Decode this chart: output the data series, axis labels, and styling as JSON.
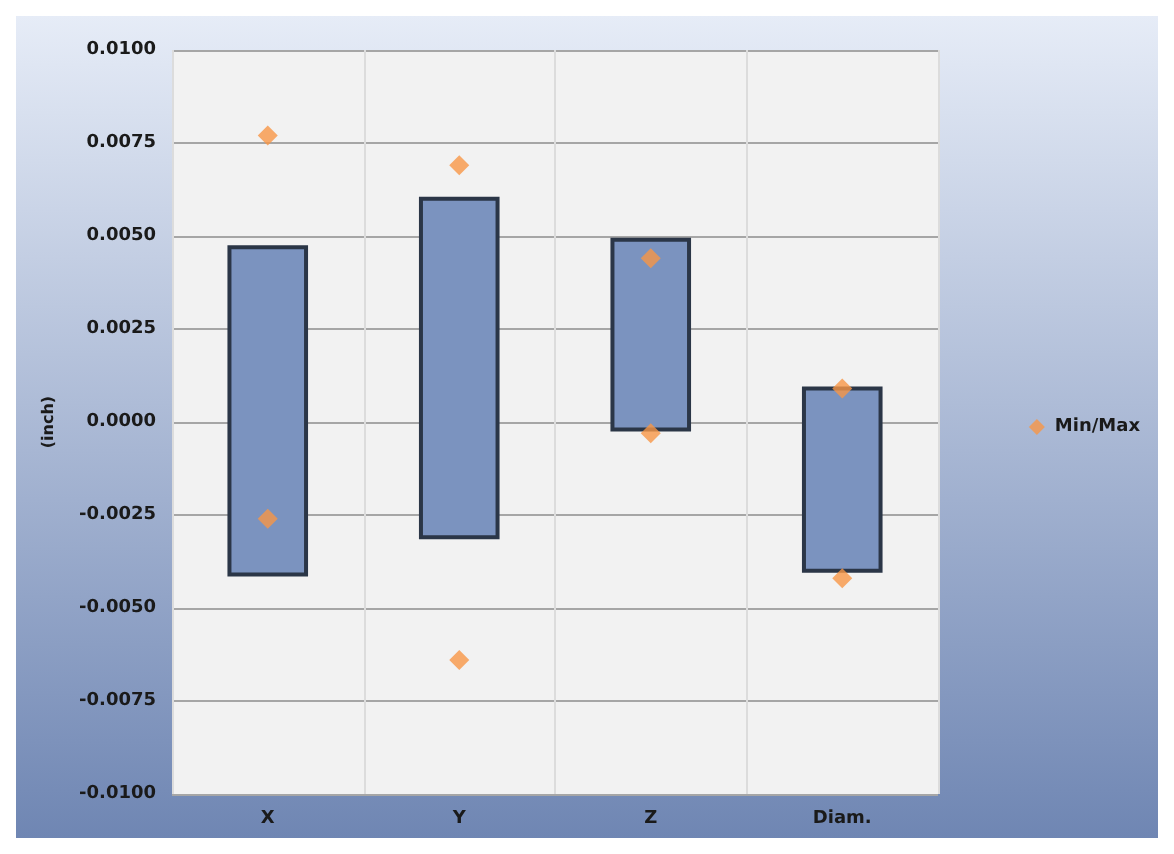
{
  "chart_data": {
    "type": "bar",
    "ylabel": "(inch)",
    "categories": [
      "X",
      "Y",
      "Z",
      "Diam."
    ],
    "series": [
      {
        "color": "#7b93bf",
        "base": [
          -0.0041,
          -0.0031,
          -0.0002,
          -0.004
        ],
        "values": [
          0.0088,
          0.0091,
          0.0051,
          0.0049
        ]
      },
      {
        "type": "scatter",
        "name": "Min/Max",
        "color": "#f79646",
        "marker": "diamond",
        "x": [
          "X",
          "X",
          "Y",
          "Y",
          "Z",
          "Z",
          "Diam.",
          "Diam."
        ],
        "values": [
          0.0077,
          -0.0026,
          0.0069,
          -0.0064,
          0.0044,
          -0.0003,
          0.0009,
          -0.0042
        ]
      }
    ],
    "ylim": [
      -0.01,
      0.01
    ],
    "yticks": [
      {
        "value": -0.01,
        "label": "-0.0100"
      },
      {
        "value": -0.0075,
        "label": "-0.0075"
      },
      {
        "value": -0.005,
        "label": "-0.0050"
      },
      {
        "value": -0.0025,
        "label": "-0.0025"
      },
      {
        "value": 0,
        "label": "0.0000"
      },
      {
        "value": 0.0025,
        "label": "0.0025"
      },
      {
        "value": 0.005,
        "label": "0.0050"
      },
      {
        "value": 0.0075,
        "label": "0.0075"
      },
      {
        "value": 0.01,
        "label": "0.0100"
      }
    ],
    "grid": true,
    "legend": "right"
  }
}
